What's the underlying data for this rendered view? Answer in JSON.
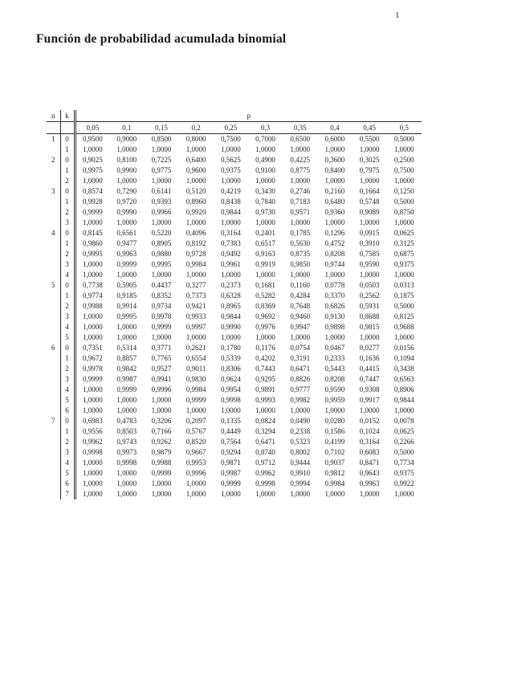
{
  "page": {
    "number": "1",
    "title": "Función de probabilidad acumulada binomial"
  },
  "colors": {
    "background": "#ffffff",
    "text": "#1d1d1d",
    "rule": "#2b2b2b"
  },
  "table": {
    "col_n_label": "n",
    "col_k_label": "k",
    "p_label": "p",
    "p_values": [
      "0,05",
      "0,1",
      "0,15",
      "0,2",
      "0,25",
      "0,3",
      "0,35",
      "0,4",
      "0,45",
      "0,5"
    ],
    "groups": [
      {
        "n": "1",
        "rows": [
          {
            "k": "0",
            "values": [
              "0,9500",
              "0,9000",
              "0,8500",
              "0,8000",
              "0,7500",
              "0,7000",
              "0,6500",
              "0,6000",
              "0,5500",
              "0,5000"
            ]
          },
          {
            "k": "1",
            "values": [
              "1,0000",
              "1,0000",
              "1,0000",
              "1,0000",
              "1,0000",
              "1,0000",
              "1,0000",
              "1,0000",
              "1,0000",
              "1,0000"
            ]
          }
        ]
      },
      {
        "n": "2",
        "rows": [
          {
            "k": "0",
            "values": [
              "0,9025",
              "0,8100",
              "0,7225",
              "0,6400",
              "0,5625",
              "0,4900",
              "0,4225",
              "0,3600",
              "0,3025",
              "0,2500"
            ]
          },
          {
            "k": "1",
            "values": [
              "0,9975",
              "0,9900",
              "0,9775",
              "0,9600",
              "0,9375",
              "0,9100",
              "0,8775",
              "0,8400",
              "0,7975",
              "0,7500"
            ]
          },
          {
            "k": "2",
            "values": [
              "1,0000",
              "1,0000",
              "1,0000",
              "1,0000",
              "1,0000",
              "1,0000",
              "1,0000",
              "1,0000",
              "1,0000",
              "1,0000"
            ]
          }
        ]
      },
      {
        "n": "3",
        "rows": [
          {
            "k": "0",
            "values": [
              "0,8574",
              "0,7290",
              "0,6141",
              "0,5120",
              "0,4219",
              "0,3430",
              "0,2746",
              "0,2160",
              "0,1664",
              "0,1250"
            ]
          },
          {
            "k": "1",
            "values": [
              "0,9928",
              "0,9720",
              "0,9393",
              "0,8960",
              "0,8438",
              "0,7840",
              "0,7183",
              "0,6480",
              "0,5748",
              "0,5000"
            ]
          },
          {
            "k": "2",
            "values": [
              "0,9999",
              "0,9990",
              "0,9966",
              "0,9920",
              "0,9844",
              "0,9730",
              "0,9571",
              "0,9360",
              "0,9089",
              "0,8750"
            ]
          },
          {
            "k": "3",
            "values": [
              "1,0000",
              "1,0000",
              "1,0000",
              "1,0000",
              "1,0000",
              "1,0000",
              "1,0000",
              "1,0000",
              "1,0000",
              "1,0000"
            ]
          }
        ]
      },
      {
        "n": "4",
        "rows": [
          {
            "k": "0",
            "values": [
              "0,8145",
              "0,6561",
              "0,5220",
              "0,4096",
              "0,3164",
              "0,2401",
              "0,1785",
              "0,1296",
              "0,0915",
              "0,0625"
            ]
          },
          {
            "k": "1",
            "values": [
              "0,9860",
              "0,9477",
              "0,8905",
              "0,8192",
              "0,7383",
              "0,6517",
              "0,5630",
              "0,4752",
              "0,3910",
              "0,3125"
            ]
          },
          {
            "k": "2",
            "values": [
              "0,9995",
              "0,9963",
              "0,9880",
              "0,9728",
              "0,9492",
              "0,9163",
              "0,8735",
              "0,8208",
              "0,7585",
              "0,6875"
            ]
          },
          {
            "k": "3",
            "values": [
              "1,0000",
              "0,9999",
              "0,9995",
              "0,9984",
              "0,9961",
              "0,9919",
              "0,9850",
              "0,9744",
              "0,9590",
              "0,9375"
            ]
          },
          {
            "k": "4",
            "values": [
              "1,0000",
              "1,0000",
              "1,0000",
              "1,0000",
              "1,0000",
              "1,0000",
              "1,0000",
              "1,0000",
              "1,0000",
              "1,0000"
            ]
          }
        ]
      },
      {
        "n": "5",
        "rows": [
          {
            "k": "0",
            "values": [
              "0,7738",
              "0,5905",
              "0,4437",
              "0,3277",
              "0,2373",
              "0,1681",
              "0,1160",
              "0,0778",
              "0,0503",
              "0,0313"
            ]
          },
          {
            "k": "1",
            "values": [
              "0,9774",
              "0,9185",
              "0,8352",
              "0,7373",
              "0,6328",
              "0,5282",
              "0,4284",
              "0,3370",
              "0,2562",
              "0,1875"
            ]
          },
          {
            "k": "2",
            "values": [
              "0,9988",
              "0,9914",
              "0,9734",
              "0,9421",
              "0,8965",
              "0,8369",
              "0,7648",
              "0,6826",
              "0,5931",
              "0,5000"
            ]
          },
          {
            "k": "3",
            "values": [
              "1,0000",
              "0,9995",
              "0,9978",
              "0,9933",
              "0,9844",
              "0,9692",
              "0,9460",
              "0,9130",
              "0,8688",
              "0,8125"
            ]
          },
          {
            "k": "4",
            "values": [
              "1,0000",
              "1,0000",
              "0,9999",
              "0,9997",
              "0,9990",
              "0,9976",
              "0,9947",
              "0,9898",
              "0,9815",
              "0,9688"
            ]
          },
          {
            "k": "5",
            "values": [
              "1,0000",
              "1,0000",
              "1,0000",
              "1,0000",
              "1,0000",
              "1,0000",
              "1,0000",
              "1,0000",
              "1,0000",
              "1,0000"
            ]
          }
        ]
      },
      {
        "n": "6",
        "rows": [
          {
            "k": "0",
            "values": [
              "0,7351",
              "0,5314",
              "0,3771",
              "0,2621",
              "0,1780",
              "0,1176",
              "0,0754",
              "0,0467",
              "0,0277",
              "0,0156"
            ]
          },
          {
            "k": "1",
            "values": [
              "0,9672",
              "0,8857",
              "0,7765",
              "0,6554",
              "0,5339",
              "0,4202",
              "0,3191",
              "0,2333",
              "0,1636",
              "0,1094"
            ]
          },
          {
            "k": "2",
            "values": [
              "0,9978",
              "0,9842",
              "0,9527",
              "0,9011",
              "0,8306",
              "0,7443",
              "0,6471",
              "0,5443",
              "0,4415",
              "0,3438"
            ]
          },
          {
            "k": "3",
            "values": [
              "0,9999",
              "0,9987",
              "0,9941",
              "0,9830",
              "0,9624",
              "0,9295",
              "0,8826",
              "0,8208",
              "0,7447",
              "0,6563"
            ]
          },
          {
            "k": "4",
            "values": [
              "1,0000",
              "0,9999",
              "0,9996",
              "0,9984",
              "0,9954",
              "0,9891",
              "0,9777",
              "0,9590",
              "0,9308",
              "0,8906"
            ]
          },
          {
            "k": "5",
            "values": [
              "1,0000",
              "1,0000",
              "1,0000",
              "0,9999",
              "0,9998",
              "0,9993",
              "0,9982",
              "0,9959",
              "0,9917",
              "0,9844"
            ]
          },
          {
            "k": "6",
            "values": [
              "1,0000",
              "1,0000",
              "1,0000",
              "1,0000",
              "1,0000",
              "1,0000",
              "1,0000",
              "1,0000",
              "1,0000",
              "1,0000"
            ]
          }
        ]
      },
      {
        "n": "7",
        "rows": [
          {
            "k": "0",
            "values": [
              "0,6983",
              "0,4783",
              "0,3206",
              "0,2097",
              "0,1335",
              "0,0824",
              "0,0490",
              "0,0280",
              "0,0152",
              "0,0078"
            ]
          },
          {
            "k": "1",
            "values": [
              "0,9556",
              "0,8503",
              "0,7166",
              "0,5767",
              "0,4449",
              "0,3294",
              "0,2338",
              "0,1586",
              "0,1024",
              "0,0625"
            ]
          },
          {
            "k": "2",
            "values": [
              "0,9962",
              "0,9743",
              "0,9262",
              "0,8520",
              "0,7564",
              "0,6471",
              "0,5323",
              "0,4199",
              "0,3164",
              "0,2266"
            ]
          },
          {
            "k": "3",
            "values": [
              "0,9998",
              "0,9973",
              "0,9879",
              "0,9667",
              "0,9294",
              "0,8740",
              "0,8002",
              "0,7102",
              "0,6083",
              "0,5000"
            ]
          },
          {
            "k": "4",
            "values": [
              "1,0000",
              "0,9998",
              "0,9988",
              "0,9953",
              "0,9871",
              "0,9712",
              "0,9444",
              "0,9037",
              "0,8471",
              "0,7734"
            ]
          },
          {
            "k": "5",
            "values": [
              "1,0000",
              "1,0000",
              "0,9999",
              "0,9996",
              "0,9987",
              "0,9962",
              "0,9910",
              "0,9812",
              "0,9643",
              "0,9375"
            ]
          },
          {
            "k": "6",
            "values": [
              "1,0000",
              "1,0000",
              "1,0000",
              "1,0000",
              "0,9999",
              "0,9998",
              "0,9994",
              "0,9984",
              "0,9963",
              "0,9922"
            ]
          },
          {
            "k": "7",
            "values": [
              "1,0000",
              "1,0000",
              "1,0000",
              "1,0000",
              "1,0000",
              "1,0000",
              "1,0000",
              "1,0000",
              "1,0000",
              "1,0000"
            ]
          }
        ]
      }
    ]
  }
}
